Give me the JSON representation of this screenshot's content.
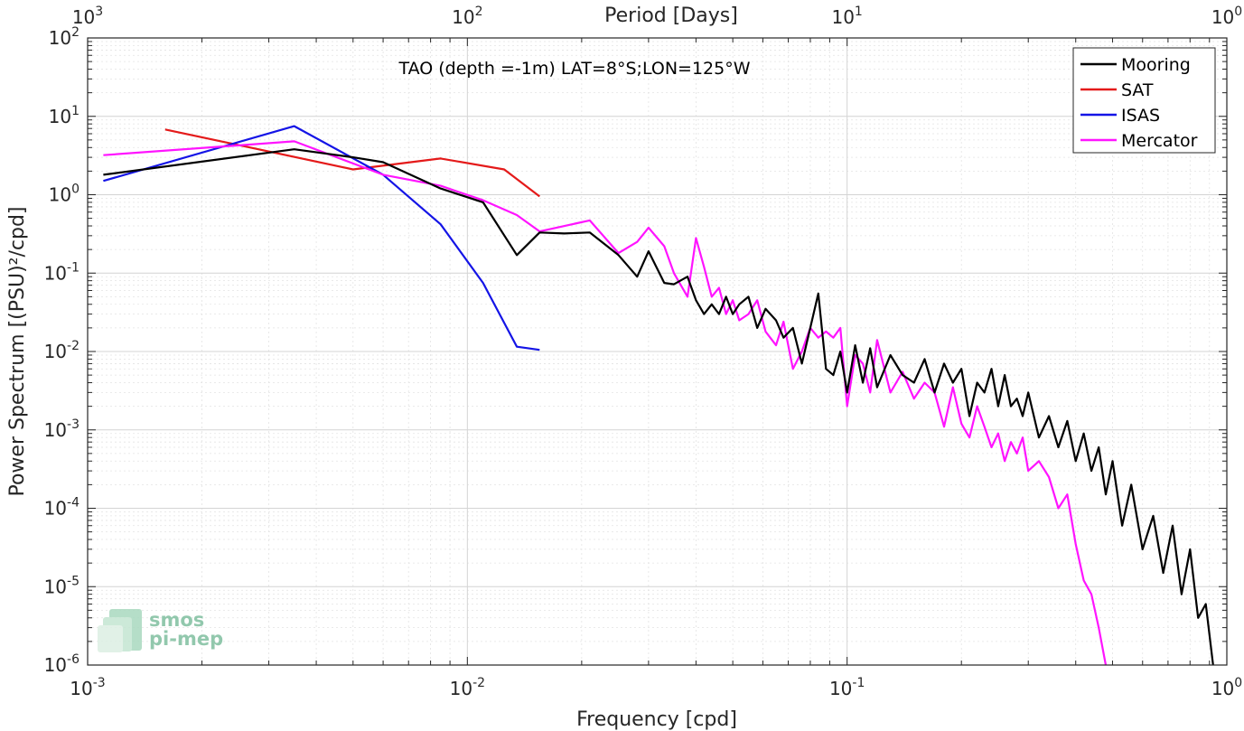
{
  "chart_data": {
    "type": "line",
    "title": "TAO (depth =-1m) LAT=8°S;LON=125°W",
    "xlabel": "Frequency [cpd]",
    "ylabel": "Power Spectrum [(PSU)²/cpd]",
    "top_xlabel": "Period [Days]",
    "x_scale": "log",
    "y_scale": "log",
    "xlim": [
      0.001,
      1
    ],
    "ylim": [
      1e-06,
      100
    ],
    "grid": true,
    "legend_position": "top-right",
    "x_ticks": [
      {
        "base": "10",
        "exp": "-3"
      },
      {
        "base": "10",
        "exp": "-2"
      },
      {
        "base": "10",
        "exp": "-1"
      },
      {
        "base": "10",
        "exp": "0"
      }
    ],
    "top_x_ticks": [
      {
        "base": "10",
        "exp": "3"
      },
      {
        "base": "10",
        "exp": "2"
      },
      {
        "base": "10",
        "exp": "1"
      },
      {
        "base": "10",
        "exp": "0"
      }
    ],
    "y_ticks": [
      {
        "base": "10",
        "exp": "-6"
      },
      {
        "base": "10",
        "exp": "-5"
      },
      {
        "base": "10",
        "exp": "-4"
      },
      {
        "base": "10",
        "exp": "-3"
      },
      {
        "base": "10",
        "exp": "-2"
      },
      {
        "base": "10",
        "exp": "-1"
      },
      {
        "base": "10",
        "exp": "0"
      },
      {
        "base": "10",
        "exp": "1"
      },
      {
        "base": "10",
        "exp": "2"
      }
    ],
    "series": [
      {
        "name": "Mooring",
        "color": "#000000",
        "x": [
          0.0011,
          0.0035,
          0.005,
          0.006,
          0.0085,
          0.011,
          0.0135,
          0.0155,
          0.018,
          0.021,
          0.025,
          0.028,
          0.03,
          0.033,
          0.035,
          0.038,
          0.04,
          0.042,
          0.044,
          0.046,
          0.048,
          0.05,
          0.052,
          0.055,
          0.058,
          0.061,
          0.065,
          0.068,
          0.072,
          0.076,
          0.08,
          0.084,
          0.088,
          0.092,
          0.096,
          0.1,
          0.105,
          0.11,
          0.115,
          0.12,
          0.13,
          0.14,
          0.15,
          0.16,
          0.17,
          0.18,
          0.19,
          0.2,
          0.21,
          0.22,
          0.23,
          0.24,
          0.25,
          0.26,
          0.27,
          0.28,
          0.29,
          0.3,
          0.32,
          0.34,
          0.36,
          0.38,
          0.4,
          0.42,
          0.44,
          0.46,
          0.48,
          0.5,
          0.53,
          0.56,
          0.6,
          0.64,
          0.68,
          0.72,
          0.76,
          0.8,
          0.84,
          0.88,
          0.92
        ],
        "y": [
          1.8,
          3.8,
          3.0,
          2.6,
          1.2,
          0.8,
          0.17,
          0.33,
          0.32,
          0.33,
          0.17,
          0.09,
          0.19,
          0.075,
          0.072,
          0.09,
          0.045,
          0.03,
          0.04,
          0.03,
          0.05,
          0.03,
          0.04,
          0.05,
          0.02,
          0.035,
          0.025,
          0.015,
          0.02,
          0.007,
          0.02,
          0.055,
          0.006,
          0.005,
          0.01,
          0.003,
          0.012,
          0.004,
          0.011,
          0.0035,
          0.009,
          0.005,
          0.004,
          0.008,
          0.003,
          0.007,
          0.004,
          0.006,
          0.0015,
          0.004,
          0.003,
          0.006,
          0.002,
          0.005,
          0.002,
          0.0025,
          0.0015,
          0.003,
          0.0008,
          0.0015,
          0.0006,
          0.0013,
          0.0004,
          0.0009,
          0.0003,
          0.0006,
          0.00015,
          0.0004,
          6e-05,
          0.0002,
          3e-05,
          8e-05,
          1.5e-05,
          6e-05,
          8e-06,
          3e-05,
          4e-06,
          6e-06,
          1e-06
        ]
      },
      {
        "name": "SAT",
        "color": "#e41a1a",
        "x": [
          0.0016,
          0.005,
          0.0085,
          0.0125,
          0.0155
        ],
        "y": [
          6.8,
          2.1,
          2.9,
          2.1,
          0.95
        ]
      },
      {
        "name": "ISAS",
        "color": "#1414e6",
        "x": [
          0.0011,
          0.0035,
          0.006,
          0.0085,
          0.011,
          0.0135,
          0.0155
        ],
        "y": [
          1.5,
          7.5,
          1.8,
          0.42,
          0.075,
          0.0115,
          0.0105
        ]
      },
      {
        "name": "Mercator",
        "color": "#ff14ff",
        "x": [
          0.0011,
          0.0035,
          0.006,
          0.0085,
          0.011,
          0.0135,
          0.0155,
          0.021,
          0.025,
          0.028,
          0.03,
          0.033,
          0.035,
          0.038,
          0.04,
          0.042,
          0.044,
          0.046,
          0.048,
          0.05,
          0.052,
          0.055,
          0.058,
          0.061,
          0.065,
          0.068,
          0.072,
          0.076,
          0.08,
          0.084,
          0.088,
          0.092,
          0.096,
          0.1,
          0.105,
          0.11,
          0.115,
          0.12,
          0.13,
          0.14,
          0.15,
          0.16,
          0.17,
          0.18,
          0.19,
          0.2,
          0.21,
          0.22,
          0.23,
          0.24,
          0.25,
          0.26,
          0.27,
          0.28,
          0.29,
          0.3,
          0.32,
          0.34,
          0.36,
          0.38,
          0.4,
          0.42,
          0.44,
          0.46,
          0.48
        ],
        "y": [
          3.2,
          4.8,
          1.8,
          1.3,
          0.85,
          0.55,
          0.34,
          0.47,
          0.18,
          0.25,
          0.38,
          0.22,
          0.1,
          0.05,
          0.28,
          0.12,
          0.05,
          0.065,
          0.03,
          0.045,
          0.025,
          0.03,
          0.045,
          0.018,
          0.012,
          0.024,
          0.006,
          0.01,
          0.02,
          0.015,
          0.018,
          0.015,
          0.02,
          0.002,
          0.009,
          0.007,
          0.003,
          0.014,
          0.003,
          0.0055,
          0.0025,
          0.004,
          0.003,
          0.0011,
          0.0035,
          0.0012,
          0.0008,
          0.002,
          0.0011,
          0.0006,
          0.0009,
          0.0004,
          0.0007,
          0.0005,
          0.0008,
          0.0003,
          0.0004,
          0.00025,
          0.0001,
          0.00015,
          3.5e-05,
          1.2e-05,
          8e-06,
          3e-06,
          1e-06
        ]
      }
    ],
    "watermark": {
      "line1": "smos",
      "line2": "pi-mep"
    }
  }
}
